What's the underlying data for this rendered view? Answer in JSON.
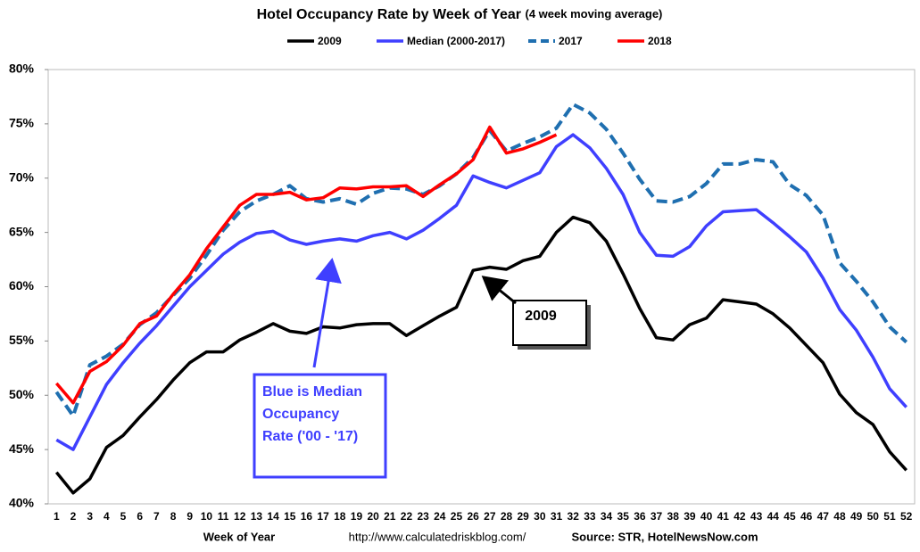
{
  "chart_data": {
    "type": "line",
    "title": "Hotel Occupancy Rate by  Week of Year",
    "subtitle": "(4 week moving average)",
    "x_label": "Week of Year",
    "url": "http://www.calculatedriskblog.com/",
    "source": "Source: STR, HotelNewsNow.com",
    "x": [
      1,
      2,
      3,
      4,
      5,
      6,
      7,
      8,
      9,
      10,
      11,
      12,
      13,
      14,
      15,
      16,
      17,
      18,
      19,
      20,
      21,
      22,
      23,
      24,
      25,
      26,
      27,
      28,
      29,
      30,
      31,
      32,
      33,
      34,
      35,
      36,
      37,
      38,
      39,
      40,
      41,
      42,
      43,
      44,
      45,
      46,
      47,
      48,
      49,
      50,
      51,
      52
    ],
    "xlim": [
      0.5,
      52.5
    ],
    "ylim": [
      40,
      80
    ],
    "yticks": [
      {
        "value": 40,
        "label": "40%"
      },
      {
        "value": 45,
        "label": "45%"
      },
      {
        "value": 50,
        "label": "50%"
      },
      {
        "value": 55,
        "label": "55%"
      },
      {
        "value": 60,
        "label": "60%"
      },
      {
        "value": 65,
        "label": "65%"
      },
      {
        "value": 70,
        "label": "70%"
      },
      {
        "value": 75,
        "label": "75%"
      },
      {
        "value": 80,
        "label": "80%"
      }
    ],
    "grid": false,
    "legend": "top",
    "series": [
      {
        "name": "2009",
        "color": "#000000",
        "linestyle": "solid",
        "values": [
          42.9,
          41.0,
          42.3,
          45.2,
          46.3,
          48.0,
          49.6,
          51.4,
          53.0,
          54.0,
          54.0,
          55.1,
          55.8,
          56.6,
          55.9,
          55.7,
          56.3,
          56.2,
          56.5,
          56.6,
          56.6,
          55.5,
          56.4,
          57.3,
          58.1,
          61.5,
          61.8,
          61.6,
          62.4,
          62.8,
          65.0,
          66.4,
          65.9,
          64.2,
          61.2,
          58.0,
          55.3,
          55.1,
          56.5,
          57.1,
          58.8,
          58.6,
          58.4,
          57.5,
          56.2,
          54.6,
          53.0,
          50.1,
          48.4,
          47.3,
          44.8,
          43.1
        ]
      },
      {
        "name": "Median (2000-2017)",
        "color": "#3f3fff",
        "linestyle": "solid",
        "values": [
          45.9,
          45.0,
          48.0,
          51.0,
          53.0,
          54.8,
          56.4,
          58.2,
          60.0,
          61.5,
          63.0,
          64.1,
          64.9,
          65.1,
          64.3,
          63.9,
          64.2,
          64.4,
          64.2,
          64.7,
          65.0,
          64.4,
          65.2,
          66.3,
          67.5,
          70.2,
          69.6,
          69.1,
          69.8,
          70.5,
          72.9,
          74.0,
          72.8,
          70.9,
          68.5,
          65.0,
          62.9,
          62.8,
          63.7,
          65.6,
          66.9,
          67.0,
          67.1,
          65.9,
          64.6,
          63.2,
          60.8,
          57.9,
          56.0,
          53.5,
          50.6,
          48.9
        ]
      },
      {
        "name": "2017",
        "color": "#1f6fb0",
        "linestyle": "dashed",
        "values": [
          50.3,
          48.1,
          52.8,
          53.6,
          54.7,
          56.5,
          57.6,
          59.2,
          60.8,
          62.9,
          65.2,
          66.9,
          67.9,
          68.5,
          69.3,
          68.1,
          67.8,
          68.1,
          67.6,
          68.6,
          69.1,
          69.0,
          68.5,
          69.3,
          70.4,
          71.9,
          74.4,
          72.5,
          73.2,
          73.8,
          74.6,
          76.8,
          76.0,
          74.5,
          72.3,
          69.9,
          67.9,
          67.8,
          68.3,
          69.5,
          71.3,
          71.3,
          71.7,
          71.5,
          69.4,
          68.4,
          66.6,
          62.2,
          60.5,
          58.6,
          56.3,
          54.9
        ]
      },
      {
        "name": "2018",
        "color": "#ff0000",
        "linestyle": "solid",
        "values": [
          51.1,
          49.3,
          52.2,
          53.1,
          54.6,
          56.6,
          57.3,
          59.3,
          61.1,
          63.5,
          65.5,
          67.5,
          68.5,
          68.5,
          68.7,
          68.0,
          68.2,
          69.1,
          69.0,
          69.2,
          69.2,
          69.3,
          68.3,
          69.4,
          70.4,
          71.7,
          74.7,
          72.3,
          72.7,
          73.3,
          74.0,
          null,
          null,
          null,
          null,
          null,
          null,
          null,
          null,
          null,
          null,
          null,
          null,
          null,
          null,
          null,
          null,
          null,
          null,
          null,
          null,
          null
        ]
      }
    ],
    "annotations": [
      {
        "text": "2009"
      },
      {
        "lines": [
          "Blue is Median",
          "Occupancy",
          "Rate ('00 - '17)"
        ]
      }
    ]
  }
}
